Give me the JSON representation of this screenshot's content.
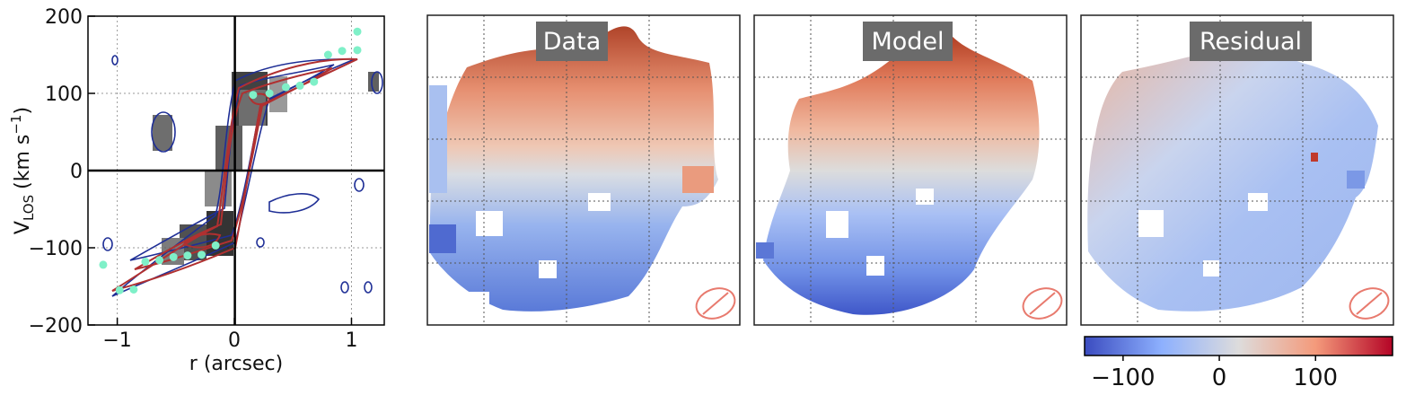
{
  "chart_data": [
    {
      "type": "position-velocity diagram",
      "xlabel": "r (arcsec)",
      "ylabel": "V_LOS (km s^-1)",
      "ylabel_main": "V",
      "ylabel_sub": "LOS",
      "ylabel_units": "(km s",
      "ylabel_exp": "−1",
      "ylabel_close": ")",
      "xlim": [
        -1.25,
        1.28
      ],
      "ylim": [
        -200,
        200
      ],
      "x_ticks": [
        -1,
        0,
        1
      ],
      "x_tick_labels": [
        "−1",
        "0",
        "1"
      ],
      "y_ticks": [
        -200,
        -100,
        0,
        100,
        200
      ],
      "y_tick_labels": [
        "−200",
        "−100",
        "0",
        "100",
        "200"
      ],
      "grid": true,
      "points_color": "#7ff0c8",
      "points": [
        {
          "x": -1.12,
          "y": -122
        },
        {
          "x": -0.98,
          "y": -155
        },
        {
          "x": -0.86,
          "y": -154
        },
        {
          "x": -0.76,
          "y": -118
        },
        {
          "x": -0.64,
          "y": -116
        },
        {
          "x": -0.52,
          "y": -112
        },
        {
          "x": -0.4,
          "y": -110
        },
        {
          "x": -0.28,
          "y": -109
        },
        {
          "x": -0.16,
          "y": -97
        },
        {
          "x": 0.16,
          "y": 98
        },
        {
          "x": 0.3,
          "y": 100
        },
        {
          "x": 0.44,
          "y": 108
        },
        {
          "x": 0.56,
          "y": 110
        },
        {
          "x": 0.68,
          "y": 115
        },
        {
          "x": 0.8,
          "y": 150
        },
        {
          "x": 0.92,
          "y": 155
        },
        {
          "x": 1.05,
          "y": 156
        },
        {
          "x": 1.05,
          "y": 180
        }
      ],
      "model_color": "#b03030",
      "data_contour_color": "#1f2f96"
    },
    {
      "type": "heatmap",
      "panels": [
        "Data",
        "Model",
        "Residual"
      ],
      "colormap": "coolwarm",
      "colormap_stops": [
        "#3b4cc0",
        "#8db0fe",
        "#dddcdc",
        "#f49a7b",
        "#b40426"
      ],
      "colorbar_range": [
        -140,
        180
      ],
      "colorbar_ticks": [
        -100,
        0,
        100
      ],
      "colorbar_tick_labels": [
        "−100",
        "0",
        "100"
      ],
      "beam_color": "#e87a6e"
    }
  ]
}
